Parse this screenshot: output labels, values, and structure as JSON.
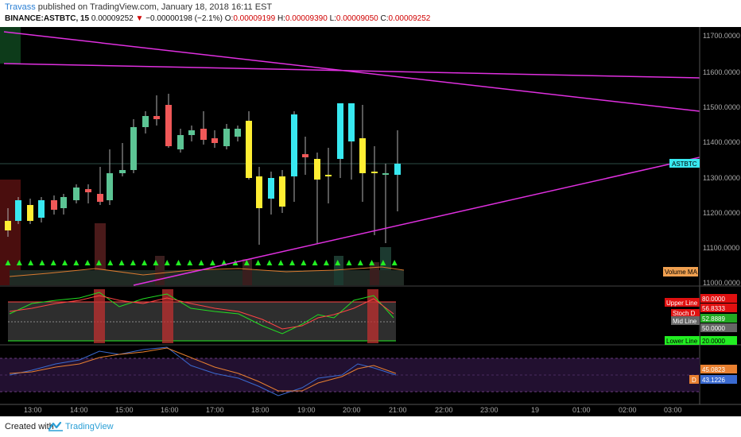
{
  "header": {
    "user": "Travass",
    "published_text": "published on TradingView.com, January 18, 2018 16:11 EST",
    "symbol": "BINANCE:ASTBTC, 15",
    "price": "0.00009252",
    "change_arrow": "▼",
    "change": "−0.00000198 (−2.1%)",
    "o_label": "O:",
    "o_value": "0.00009199",
    "h_label": "H:",
    "h_value": "0.00009390",
    "l_label": "L:",
    "l_value": "0.00009050",
    "c_label": "C:",
    "c_value": "0.00009252"
  },
  "price_axis": {
    "ticks": [
      "11700.0000",
      "11600.0000",
      "11500.0000",
      "11400.0000",
      "11300.0000",
      "11200.0000",
      "11100.0000",
      "11000.0000"
    ],
    "symbol_tag": "ASTBTC",
    "volume_ma_tag": "Volume MA"
  },
  "time_axis": {
    "ticks": [
      "13:00",
      "14:00",
      "15:00",
      "16:00",
      "17:00",
      "18:00",
      "19:00",
      "20:00",
      "21:00",
      "22:00",
      "23:00",
      "19",
      "01:00",
      "02:00",
      "03:00"
    ]
  },
  "stoch_panel": {
    "upper_line_label": "Upper Line",
    "upper_line_value": "80.0000",
    "stoch_k_value": "56.8333",
    "stoch_d_label": "Stoch D",
    "mid_line_label": "Mid Line",
    "stoch_d_value": "52.8889",
    "mid_line_value": "50.0000",
    "lower_line_label": "Lower Line",
    "lower_line_value": "20.0000"
  },
  "osc_panel": {
    "value_1": "45.0823",
    "d_label": "D",
    "value_2": "43.1226"
  },
  "footer": {
    "created_with": "Created with",
    "brand": "TradingView"
  },
  "colors": {
    "bull": "#5cc494",
    "bear": "#f05858",
    "cyan": "#38e8f0",
    "yellow": "#ffee33",
    "trendline": "#e030e0",
    "signal": "#22ee22"
  }
}
